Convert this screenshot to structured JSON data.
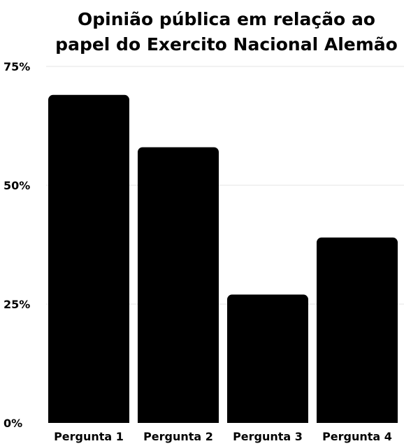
{
  "chart_data": {
    "type": "bar",
    "title_lines": [
      "Opinião pública em relação ao",
      "papel do Exercito Nacional Alemão"
    ],
    "categories": [
      "Pergunta 1",
      "Pergunta 2",
      "Pergunta 3",
      "Pergunta 4"
    ],
    "values": [
      69,
      58,
      27,
      39
    ],
    "y_ticks": [
      "0%",
      "25%",
      "50%",
      "75%"
    ],
    "ylim": [
      0,
      75
    ],
    "grid": true,
    "legend": "none",
    "bar_color": "#000000",
    "grid_color": "#e6e6e6"
  }
}
